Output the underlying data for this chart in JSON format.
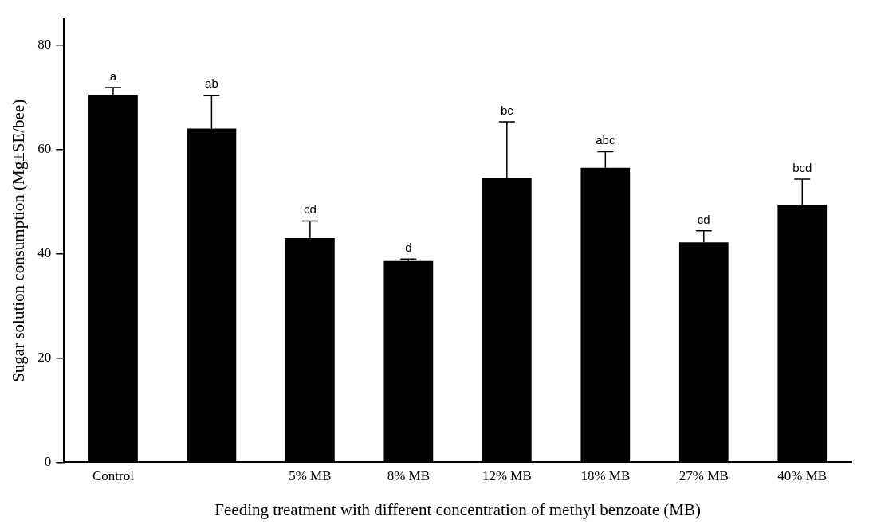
{
  "chart_data": {
    "type": "bar",
    "xlabel": "Feeding treatment with different concentration of methyl benzoate (MB)",
    "ylabel": "Sugar solution consumption (Mg±SE/bee)",
    "categories": [
      "Control",
      null,
      "5% MB",
      "8% MB",
      "12% MB",
      "18% MB",
      "27% MB",
      "40% MB"
    ],
    "values": [
      70.5,
      64.0,
      43.0,
      38.6,
      54.5,
      56.5,
      42.2,
      49.4
    ],
    "errors": [
      [
        70.5,
        71.9
      ],
      [
        64.0,
        70.4
      ],
      [
        43.0,
        46.3
      ],
      [
        38.6,
        39.0
      ],
      [
        54.5,
        65.3
      ],
      [
        56.5,
        59.6
      ],
      [
        42.2,
        44.4
      ],
      [
        49.4,
        54.3
      ]
    ],
    "color": "#000000",
    "ylim": [
      0,
      85
    ],
    "yticks": [
      0,
      20,
      40,
      60,
      80
    ],
    "grid": false,
    "legend": false,
    "annotations": [
      {
        "text": "a",
        "x": "Control",
        "y": 71.9
      },
      {
        "text": "ab",
        "y": 70.4
      },
      {
        "text": "cd",
        "x": "5% MB",
        "y": 46.3
      },
      {
        "text": "d",
        "x": "8% MB",
        "y": 39.0
      },
      {
        "text": "bc",
        "x": "12% MB",
        "y": 65.3
      },
      {
        "text": "abc",
        "x": "18% MB",
        "y": 59.6
      },
      {
        "text": "cd",
        "x": "27% MB",
        "y": 44.4
      },
      {
        "text": "bcd",
        "x": "40% MB",
        "y": 54.3
      }
    ]
  }
}
